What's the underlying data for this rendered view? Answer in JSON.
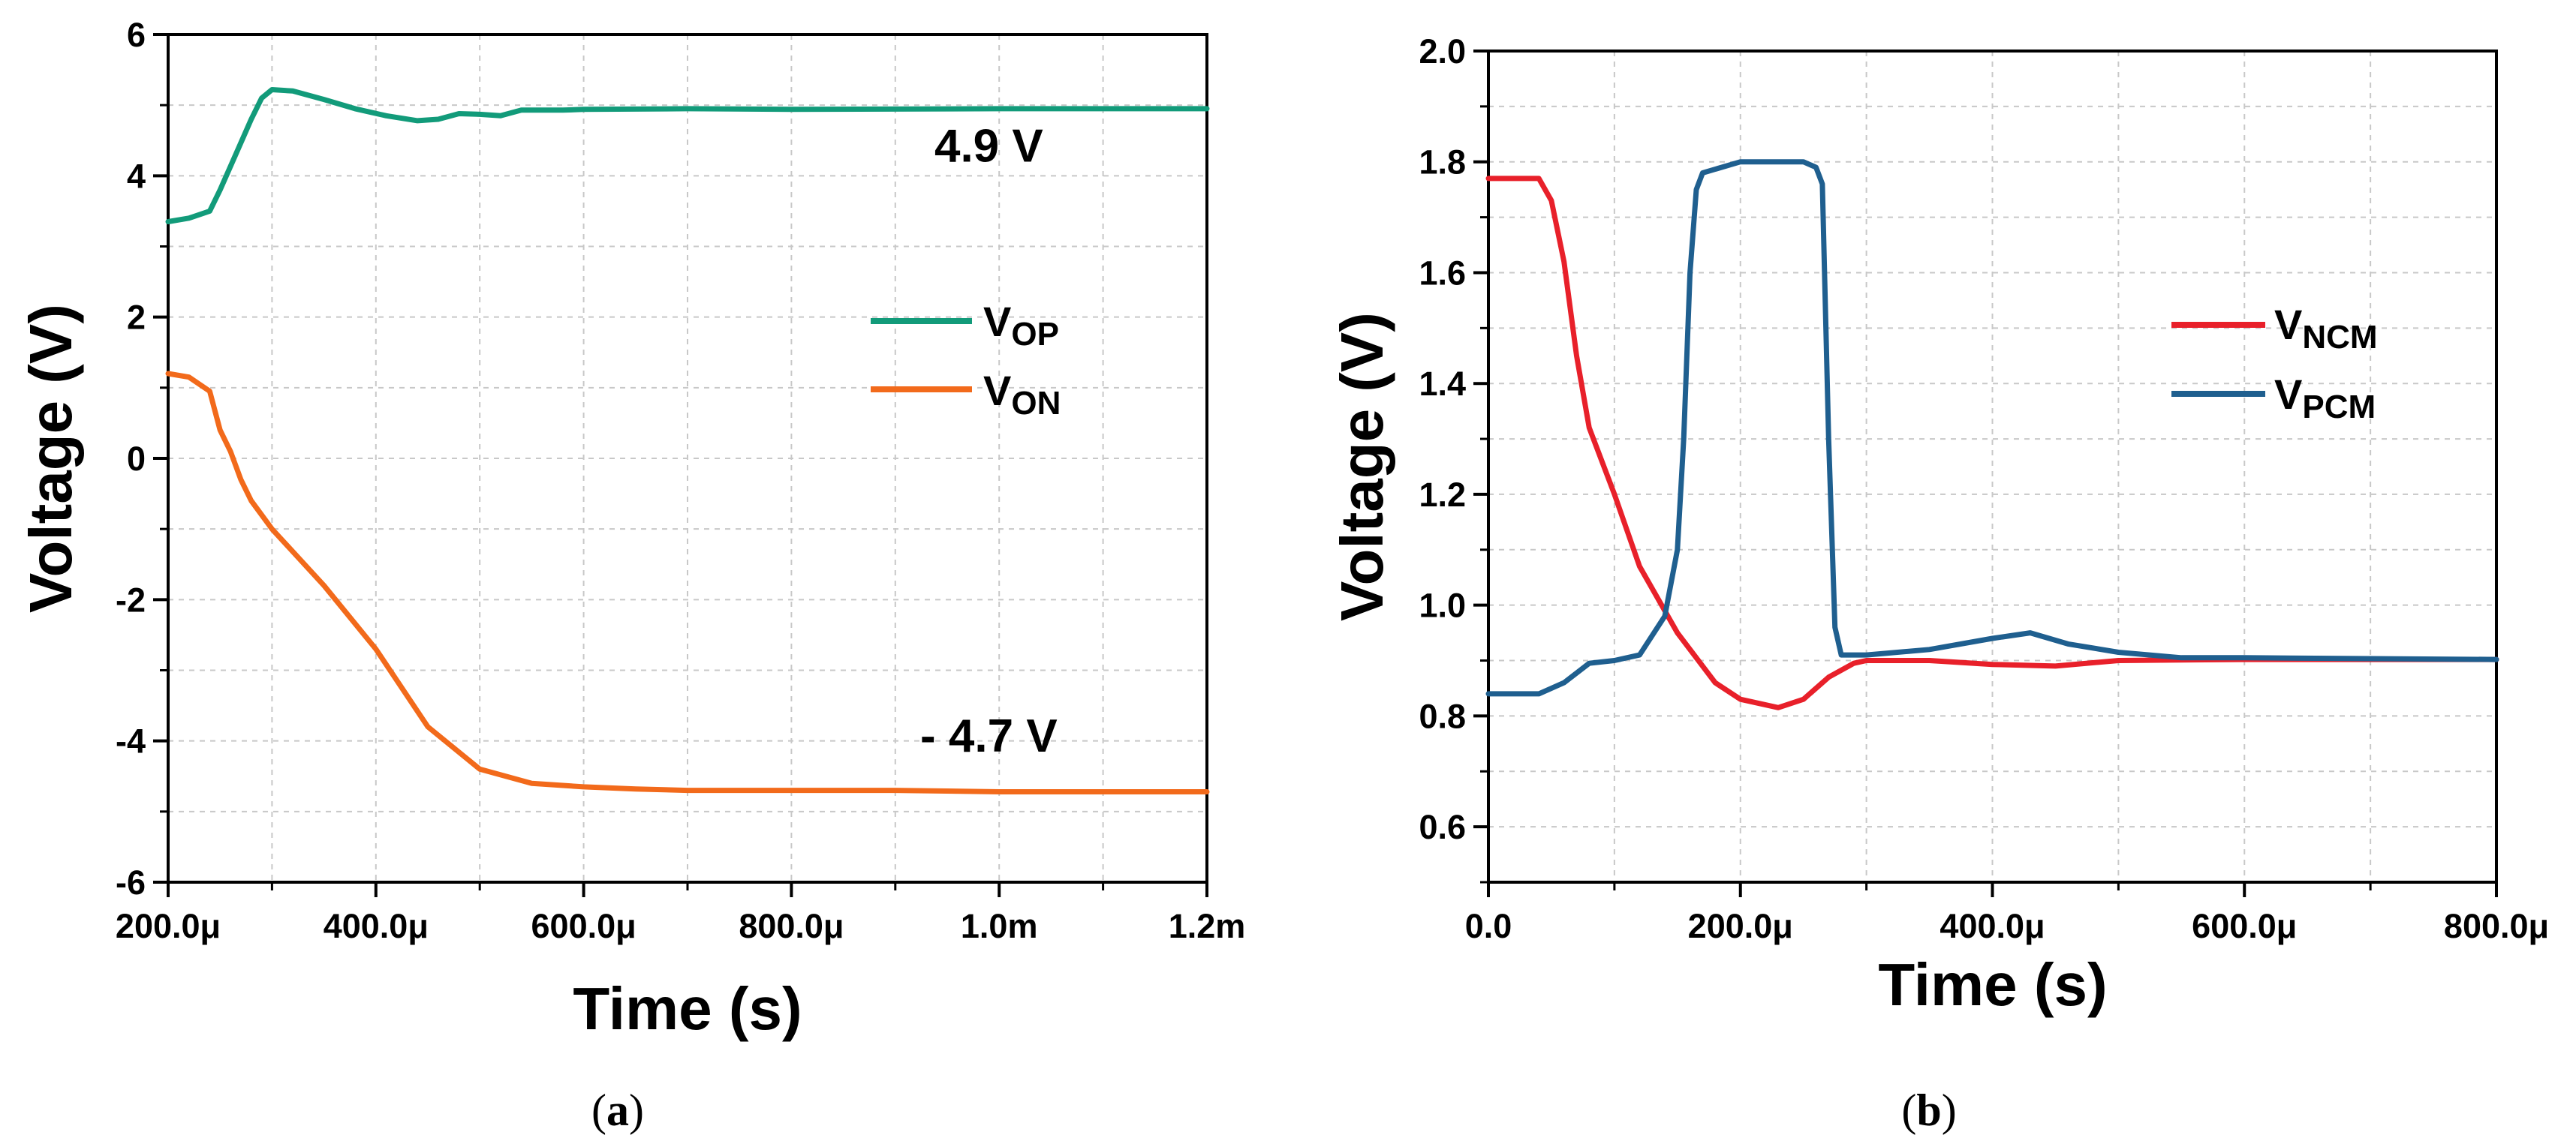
{
  "chart_data": [
    {
      "type": "line",
      "xlabel": "Time (s)",
      "ylabel": "Voltage (V)",
      "xlim": [
        0.0002,
        0.0012
      ],
      "ylim": [
        -6,
        6
      ],
      "x_ticks": [
        {
          "v": 0.0002,
          "label": "200.0μ"
        },
        {
          "v": 0.0004,
          "label": "400.0μ"
        },
        {
          "v": 0.0006,
          "label": "600.0μ"
        },
        {
          "v": 0.0008,
          "label": "800.0μ"
        },
        {
          "v": 0.001,
          "label": "1.0m"
        },
        {
          "v": 0.0012,
          "label": "1.2m"
        }
      ],
      "y_ticks": [
        {
          "v": -6,
          "label": "-6"
        },
        {
          "v": -4,
          "label": "-4"
        },
        {
          "v": -2,
          "label": "-2"
        },
        {
          "v": 0,
          "label": "0"
        },
        {
          "v": 2,
          "label": "2"
        },
        {
          "v": 4,
          "label": "4"
        },
        {
          "v": 6,
          "label": "6"
        }
      ],
      "grid": true,
      "legend_position": "center-right",
      "series": [
        {
          "name": "VOP",
          "label_main": "V",
          "label_sub": "OP",
          "color": "#129b7a",
          "x": [
            0.0002,
            0.00022,
            0.00024,
            0.00025,
            0.000265,
            0.00028,
            0.00029,
            0.0003,
            0.00032,
            0.00035,
            0.00038,
            0.00041,
            0.00044,
            0.00046,
            0.00048,
            0.0005,
            0.00052,
            0.00054,
            0.00058,
            0.0006,
            0.0007,
            0.0008,
            0.001,
            0.0012
          ],
          "y": [
            3.35,
            3.4,
            3.5,
            3.8,
            4.3,
            4.8,
            5.1,
            5.22,
            5.2,
            5.08,
            4.95,
            4.85,
            4.78,
            4.8,
            4.88,
            4.87,
            4.85,
            4.93,
            4.93,
            4.94,
            4.95,
            4.94,
            4.95,
            4.95
          ]
        },
        {
          "name": "VON",
          "label_main": "V",
          "label_sub": "ON",
          "color": "#f26a1b",
          "x": [
            0.0002,
            0.00022,
            0.00024,
            0.00025,
            0.00026,
            0.00027,
            0.00028,
            0.0003,
            0.00035,
            0.0004,
            0.00045,
            0.0005,
            0.00055,
            0.0006,
            0.00065,
            0.0007,
            0.0008,
            0.0009,
            0.001,
            0.0011,
            0.0012
          ],
          "y": [
            1.2,
            1.15,
            0.95,
            0.4,
            0.1,
            -0.3,
            -0.6,
            -1.0,
            -1.8,
            -2.7,
            -3.8,
            -4.4,
            -4.6,
            -4.65,
            -4.68,
            -4.7,
            -4.7,
            -4.7,
            -4.72,
            -4.72,
            -4.72
          ]
        }
      ],
      "annotations": [
        {
          "text": "4.9 V",
          "x": 0.00099,
          "y": 4.2
        },
        {
          "text": "- 4.7 V",
          "x": 0.00099,
          "y": -4.15
        }
      ],
      "caption": {
        "open": "(",
        "letter": "a",
        "close": ")"
      }
    },
    {
      "type": "line",
      "xlabel": "Time (s)",
      "ylabel": "Voltage (V)",
      "xlim": [
        0,
        0.0008
      ],
      "ylim": [
        0.5,
        2.0
      ],
      "x_ticks": [
        {
          "v": 0,
          "label": "0.0"
        },
        {
          "v": 0.0002,
          "label": "200.0μ"
        },
        {
          "v": 0.0004,
          "label": "400.0μ"
        },
        {
          "v": 0.0006,
          "label": "600.0μ"
        },
        {
          "v": 0.0008,
          "label": "800.0μ"
        }
      ],
      "y_ticks": [
        {
          "v": 0.6,
          "label": "0.6"
        },
        {
          "v": 0.8,
          "label": "0.8"
        },
        {
          "v": 1.0,
          "label": "1.0"
        },
        {
          "v": 1.2,
          "label": "1.2"
        },
        {
          "v": 1.4,
          "label": "1.4"
        },
        {
          "v": 1.6,
          "label": "1.6"
        },
        {
          "v": 1.8,
          "label": "1.8"
        },
        {
          "v": 2.0,
          "label": "2.0"
        }
      ],
      "grid": true,
      "legend_position": "center-right",
      "series": [
        {
          "name": "VNCM",
          "label_main": "V",
          "label_sub": "NCM",
          "color": "#e8202a",
          "x": [
            0,
            4e-05,
            5e-05,
            6e-05,
            7e-05,
            8e-05,
            0.0001,
            0.00012,
            0.00015,
            0.00018,
            0.0002,
            0.00023,
            0.00025,
            0.00027,
            0.00029,
            0.0003,
            0.00035,
            0.0004,
            0.00045,
            0.0005,
            0.0006,
            0.0008
          ],
          "y": [
            1.77,
            1.77,
            1.73,
            1.62,
            1.45,
            1.32,
            1.2,
            1.07,
            0.95,
            0.86,
            0.83,
            0.815,
            0.83,
            0.87,
            0.895,
            0.9,
            0.9,
            0.893,
            0.89,
            0.9,
            0.902,
            0.902
          ]
        },
        {
          "name": "VPCM",
          "label_main": "V",
          "label_sub": "PCM",
          "color": "#1f5f8f",
          "x": [
            0,
            4e-05,
            6e-05,
            8e-05,
            0.0001,
            0.00012,
            0.00014,
            0.00015,
            0.000155,
            0.00016,
            0.000165,
            0.00017,
            0.0002,
            0.00025,
            0.00026,
            0.000265,
            0.00027,
            0.000275,
            0.00028,
            0.0003,
            0.00035,
            0.0004,
            0.00043,
            0.00046,
            0.0005,
            0.00055,
            0.0006,
            0.0008
          ],
          "y": [
            0.84,
            0.84,
            0.86,
            0.895,
            0.9,
            0.91,
            0.98,
            1.1,
            1.3,
            1.6,
            1.75,
            1.78,
            1.8,
            1.8,
            1.79,
            1.76,
            1.3,
            0.96,
            0.91,
            0.91,
            0.92,
            0.94,
            0.95,
            0.93,
            0.915,
            0.905,
            0.905,
            0.902
          ]
        }
      ],
      "annotations": [],
      "caption": {
        "open": "(",
        "letter": "b",
        "close": ")"
      }
    }
  ]
}
